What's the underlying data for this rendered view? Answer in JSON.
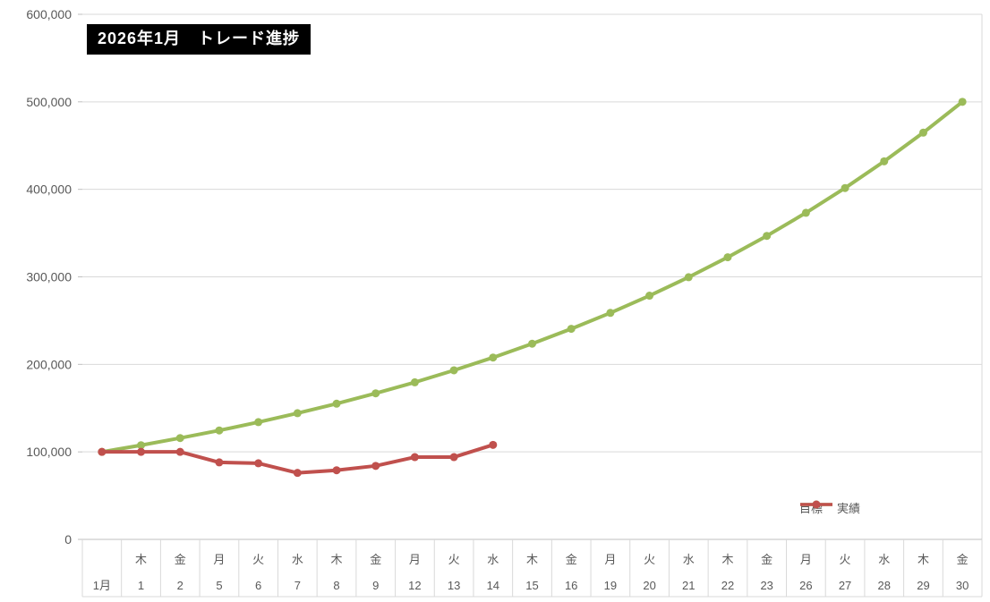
{
  "title": "2026年1月　トレード進捗",
  "legend": {
    "items": [
      {
        "label": "目標",
        "color": "#9BBB59"
      },
      {
        "label": "実績",
        "color": "#C0504D"
      }
    ],
    "position": "bottom-right-inside"
  },
  "colors": {
    "target_series": "#9BBB59",
    "actual_series": "#C0504D",
    "axis_text": "#595959",
    "gridline": "#D9D9D9",
    "axis_line": "#BFBFBF",
    "title_bg": "#000000",
    "title_fg": "#FFFFFF",
    "background": "#FFFFFF"
  },
  "chart_data": {
    "type": "line",
    "title": "2026年1月　トレード進捗",
    "categories": [
      "1月",
      "1",
      "2",
      "5",
      "6",
      "7",
      "8",
      "9",
      "12",
      "13",
      "14",
      "15",
      "16",
      "19",
      "20",
      "21",
      "22",
      "23",
      "26",
      "27",
      "28",
      "29",
      "30"
    ],
    "category_weekdays": [
      "",
      "木",
      "金",
      "月",
      "火",
      "水",
      "木",
      "金",
      "月",
      "火",
      "水",
      "木",
      "金",
      "月",
      "火",
      "水",
      "木",
      "金",
      "月",
      "火",
      "水",
      "木",
      "金"
    ],
    "series": [
      {
        "name": "目標",
        "color": "#9BBB59",
        "values": [
          100000,
          107600,
          115800,
          124500,
          134000,
          144200,
          155100,
          166900,
          179500,
          193200,
          207800,
          223600,
          240600,
          258800,
          278500,
          299600,
          322400,
          346800,
          373200,
          401500,
          432000,
          464800,
          500000
        ]
      },
      {
        "name": "実績",
        "color": "#C0504D",
        "values": [
          100000,
          100000,
          100000,
          88000,
          87000,
          76000,
          79000,
          84000,
          94000,
          94000,
          108000
        ]
      }
    ],
    "xlabel": "",
    "ylabel": "",
    "ylim": [
      0,
      600000
    ],
    "ytick_interval": 100000,
    "ytick_labels": [
      "0",
      "100,000",
      "200,000",
      "300,000",
      "400,000",
      "500,000",
      "600,000"
    ],
    "grid": "horizontal-major",
    "legend_position": "bottom-right-inside",
    "marker": "circle"
  }
}
